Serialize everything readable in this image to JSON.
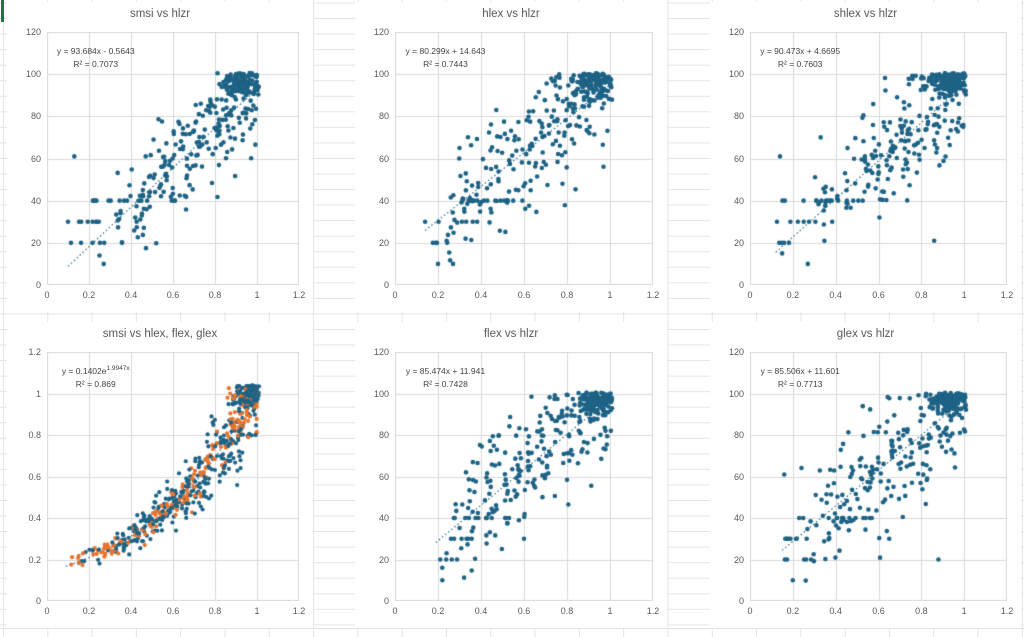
{
  "worksheet": {
    "gridline_color": "#e4e4e4",
    "selection_color": "#217346",
    "background": "#ffffff"
  },
  "colors": {
    "point_blue": "#1e6385",
    "point_orange": "#e8742f",
    "plot_grid": "#d9d9d9",
    "text": "#595959"
  },
  "chart_data": [
    {
      "type": "scatter",
      "title": "smsi vs hlzr",
      "equation": "y = 93.684x - 0.5643",
      "equation_sup": "",
      "r2_label": "R² = 0.7073",
      "xlim": [
        0,
        1.2
      ],
      "ylim": [
        0,
        120
      ],
      "xticks": [
        0,
        0.2,
        0.4,
        0.6,
        0.8,
        1,
        1.2
      ],
      "yticks": [
        0,
        20,
        40,
        60,
        80,
        100,
        120
      ],
      "grid": true,
      "legend": "none",
      "point_radius": 2.3,
      "x_clamp": 1.01,
      "trendline": {
        "kind": "linear",
        "slope": 93.684,
        "intercept": -0.5643,
        "x0": 0.1,
        "x1": 1.005,
        "style": "dotted",
        "color": "#1e6385"
      },
      "series": [
        {
          "name": "hlzr",
          "color": "#1e6385",
          "seed": 11,
          "clouds": [
            {
              "type": "linear",
              "n": 200,
              "x_min": 0.3,
              "x_max": 1.01,
              "x_pow": 0.72,
              "slope": 93.684,
              "intercept": -0.5643,
              "noise": 13,
              "y_min": 8,
              "y_max": 100
            },
            {
              "type": "cluster",
              "n": 120,
              "cx": 0.915,
              "cy": 95.5,
              "sx": 0.045,
              "sy": 3.2,
              "y_max": 100.5
            },
            {
              "type": "band",
              "n": 15,
              "y": 40,
              "x_min": 0.14,
              "x_max": 0.62
            },
            {
              "type": "band",
              "n": 8,
              "y": 30,
              "x_min": 0.08,
              "x_max": 0.46
            },
            {
              "type": "band",
              "n": 6,
              "y": 20,
              "x_min": 0.09,
              "x_max": 0.36
            },
            {
              "type": "points",
              "pts": [
                [
                  0.13,
                  61
                ],
                [
                  0.47,
                  61
                ],
                [
                  0.27,
                  10
                ],
                [
                  0.25,
                  14
                ],
                [
                  0.1,
                  30
                ],
                [
                  0.35,
                  34
                ],
                [
                  0.56,
                  57
                ]
              ]
            }
          ]
        }
      ]
    },
    {
      "type": "scatter",
      "title": "hlex vs hlzr",
      "equation": "y = 80.299x + 14.643",
      "equation_sup": "",
      "r2_label": "R² = 0.7443",
      "xlim": [
        0,
        1.2
      ],
      "ylim": [
        0,
        120
      ],
      "xticks": [
        0,
        0.2,
        0.4,
        0.6,
        0.8,
        1,
        1.2
      ],
      "yticks": [
        0,
        20,
        40,
        60,
        80,
        100,
        120
      ],
      "grid": true,
      "legend": "none",
      "point_radius": 2.3,
      "x_clamp": 1.01,
      "trendline": {
        "kind": "linear",
        "slope": 80.299,
        "intercept": 14.643,
        "x0": 0.14,
        "x1": 1.005,
        "style": "dotted",
        "color": "#1e6385"
      },
      "series": [
        {
          "name": "hlzr",
          "color": "#1e6385",
          "seed": 23,
          "clouds": [
            {
              "type": "linear",
              "n": 225,
              "x_min": 0.24,
              "x_max": 1.01,
              "x_pow": 0.78,
              "slope": 80.299,
              "intercept": 14.643,
              "noise": 15,
              "y_min": 10,
              "y_max": 100
            },
            {
              "type": "cluster",
              "n": 95,
              "cx": 0.92,
              "cy": 95,
              "sx": 0.05,
              "sy": 3.5,
              "y_max": 100.5
            },
            {
              "type": "band",
              "n": 17,
              "y": 40,
              "x_min": 0.33,
              "x_max": 0.62
            },
            {
              "type": "band",
              "n": 5,
              "y": 30,
              "x_min": 0.16,
              "x_max": 0.42
            },
            {
              "type": "band",
              "n": 4,
              "y": 20,
              "x_min": 0.17,
              "x_max": 0.3
            },
            {
              "type": "points",
              "pts": [
                [
                  0.2,
                  10
                ],
                [
                  0.27,
                  10
                ],
                [
                  0.14,
                  30
                ],
                [
                  0.24,
                  21
                ],
                [
                  0.3,
                  65
                ]
              ]
            }
          ]
        }
      ]
    },
    {
      "type": "scatter",
      "title": "shlex vs hlzr",
      "equation": "y = 90.473x + 4.6695",
      "equation_sup": "",
      "r2_label": "R² = 0.7603",
      "xlim": [
        0,
        1.2
      ],
      "ylim": [
        0,
        120
      ],
      "xticks": [
        0,
        0.2,
        0.4,
        0.6,
        0.8,
        1,
        1.2
      ],
      "yticks": [
        0,
        20,
        40,
        60,
        80,
        100,
        120
      ],
      "grid": true,
      "legend": "none",
      "point_radius": 2.3,
      "x_clamp": 1.01,
      "trendline": {
        "kind": "linear",
        "slope": 90.473,
        "intercept": 4.6695,
        "x0": 0.12,
        "x1": 1.005,
        "style": "dotted",
        "color": "#1e6385"
      },
      "series": [
        {
          "name": "hlzr",
          "color": "#1e6385",
          "seed": 37,
          "clouds": [
            {
              "type": "linear",
              "n": 210,
              "x_min": 0.3,
              "x_max": 1.01,
              "x_pow": 0.72,
              "slope": 90.473,
              "intercept": 4.6695,
              "noise": 13,
              "y_min": 8,
              "y_max": 100
            },
            {
              "type": "cluster",
              "n": 130,
              "cx": 0.93,
              "cy": 96,
              "sx": 0.042,
              "sy": 3.0,
              "y_max": 100.5
            },
            {
              "type": "band",
              "n": 15,
              "y": 40,
              "x_min": 0.15,
              "x_max": 0.6
            },
            {
              "type": "band",
              "n": 7,
              "y": 30,
              "x_min": 0.12,
              "x_max": 0.45
            },
            {
              "type": "band",
              "n": 4,
              "y": 20,
              "x_min": 0.12,
              "x_max": 0.3
            },
            {
              "type": "points",
              "pts": [
                [
                  0.14,
                  61
                ],
                [
                  0.15,
                  15
                ],
                [
                  0.86,
                  21
                ],
                [
                  0.27,
                  10
                ],
                [
                  0.33,
                  70
                ]
              ]
            }
          ]
        }
      ]
    },
    {
      "type": "scatter",
      "title": "smsi vs hlex, flex, glex",
      "equation": "y = 0.1402e",
      "equation_sup": "1.9947x",
      "r2_label": "R² = 0.869",
      "xlim": [
        0,
        1.2
      ],
      "ylim": [
        0,
        1.2
      ],
      "xticks": [
        0,
        0.2,
        0.4,
        0.6,
        0.8,
        1,
        1.2
      ],
      "yticks": [
        0,
        0.2,
        0.4,
        0.6,
        0.8,
        1,
        1.2
      ],
      "grid": true,
      "legend": "none",
      "point_radius": 2.1,
      "x_clamp": 1.01,
      "trendline": {
        "kind": "exp",
        "a": 0.1402,
        "b": 1.9947,
        "x0": 0.09,
        "x1": 1.0,
        "style": "dotted",
        "color": "#1e6385"
      },
      "series": [
        {
          "name": "hlex",
          "color": "#1e6385",
          "seed": 81,
          "clouds": [
            {
              "type": "exp",
              "n": 190,
              "x_min": 0.13,
              "x_max": 1.0,
              "x_pow": 0.62,
              "a": 0.1402,
              "b": 1.9947,
              "noise_rel": 0.14,
              "y_max": 1.04
            },
            {
              "type": "cluster",
              "n": 45,
              "cx": 0.95,
              "cy": 0.99,
              "sx": 0.035,
              "sy": 0.03,
              "y_max": 1.04
            }
          ]
        },
        {
          "name": "flex",
          "color": "#e8742f",
          "seed": 82,
          "clouds": [
            {
              "type": "exp",
              "n": 175,
              "x_min": 0.1,
              "x_max": 1.0,
              "x_pow": 0.7,
              "a": 0.1402,
              "b": 1.9947,
              "noise_rel": 0.08,
              "y_max": 1.03
            },
            {
              "type": "cluster",
              "n": 20,
              "cx": 0.93,
              "cy": 0.97,
              "sx": 0.04,
              "sy": 0.035,
              "y_max": 1.03
            }
          ]
        },
        {
          "name": "glex",
          "color": "#1e6385",
          "seed": 83,
          "clouds": [
            {
              "type": "exp",
              "n": 130,
              "x_min": 0.15,
              "x_max": 1.0,
              "x_pow": 0.6,
              "a": 0.1402,
              "b": 1.9947,
              "noise_rel": 0.12,
              "y_max": 1.04
            },
            {
              "type": "cluster",
              "n": 30,
              "cx": 0.96,
              "cy": 1.0,
              "sx": 0.03,
              "sy": 0.025,
              "y_max": 1.04
            }
          ]
        }
      ]
    },
    {
      "type": "scatter",
      "title": "flex vs hlzr",
      "equation": "y = 85.474x + 11.941",
      "equation_sup": "",
      "r2_label": "R² = 0.7428",
      "xlim": [
        0,
        1.2
      ],
      "ylim": [
        0,
        120
      ],
      "xticks": [
        0,
        0.2,
        0.4,
        0.6,
        0.8,
        1,
        1.2
      ],
      "yticks": [
        0,
        20,
        40,
        60,
        80,
        100,
        120
      ],
      "grid": true,
      "legend": "none",
      "point_radius": 2.3,
      "x_clamp": 1.01,
      "trendline": {
        "kind": "linear",
        "slope": 85.474,
        "intercept": 11.941,
        "x0": 0.19,
        "x1": 1.005,
        "style": "dotted",
        "color": "#1e6385"
      },
      "series": [
        {
          "name": "hlzr",
          "color": "#1e6385",
          "seed": 53,
          "clouds": [
            {
              "type": "linear",
              "n": 220,
              "x_min": 0.27,
              "x_max": 1.01,
              "x_pow": 0.76,
              "slope": 85.474,
              "intercept": 11.941,
              "noise": 14,
              "y_min": 9,
              "y_max": 100
            },
            {
              "type": "cluster",
              "n": 100,
              "cx": 0.92,
              "cy": 95.5,
              "sx": 0.05,
              "sy": 3.2,
              "y_max": 100.5
            },
            {
              "type": "band",
              "n": 13,
              "y": 40,
              "x_min": 0.2,
              "x_max": 0.56
            },
            {
              "type": "band",
              "n": 6,
              "y": 30,
              "x_min": 0.19,
              "x_max": 0.36
            },
            {
              "type": "band",
              "n": 4,
              "y": 20,
              "x_min": 0.2,
              "x_max": 0.3
            },
            {
              "type": "points",
              "pts": [
                [
                  0.22,
                  10
                ],
                [
                  0.22,
                  16
                ],
                [
                  0.24,
                  23
                ],
                [
                  0.6,
                  30
                ],
                [
                  0.33,
                  62
                ]
              ]
            }
          ]
        }
      ]
    },
    {
      "type": "scatter",
      "title": "glex vs hlzr",
      "equation": "y = 85.506x + 11.601",
      "equation_sup": "",
      "r2_label": "R² = 0.7713",
      "xlim": [
        0,
        1.2
      ],
      "ylim": [
        0,
        120
      ],
      "xticks": [
        0,
        0.2,
        0.4,
        0.6,
        0.8,
        1,
        1.2
      ],
      "yticks": [
        0,
        20,
        40,
        60,
        80,
        100,
        120
      ],
      "grid": true,
      "legend": "none",
      "point_radius": 2.3,
      "x_clamp": 1.01,
      "trendline": {
        "kind": "linear",
        "slope": 85.506,
        "intercept": 11.601,
        "x0": 0.15,
        "x1": 1.005,
        "style": "dotted",
        "color": "#1e6385"
      },
      "series": [
        {
          "name": "hlzr",
          "color": "#1e6385",
          "seed": 67,
          "clouds": [
            {
              "type": "linear",
              "n": 220,
              "x_min": 0.24,
              "x_max": 1.01,
              "x_pow": 0.76,
              "slope": 85.506,
              "intercept": 11.601,
              "noise": 15,
              "y_min": 9,
              "y_max": 100
            },
            {
              "type": "cluster",
              "n": 110,
              "cx": 0.93,
              "cy": 96,
              "sx": 0.045,
              "sy": 3.0,
              "y_max": 100.5
            },
            {
              "type": "band",
              "n": 14,
              "y": 40,
              "x_min": 0.22,
              "x_max": 0.6
            },
            {
              "type": "band",
              "n": 8,
              "y": 30,
              "x_min": 0.15,
              "x_max": 0.38
            },
            {
              "type": "band",
              "n": 5,
              "y": 20,
              "x_min": 0.15,
              "x_max": 0.3
            },
            {
              "type": "points",
              "pts": [
                [
                  0.88,
                  20
                ],
                [
                  0.2,
                  10
                ],
                [
                  0.65,
                  30
                ],
                [
                  0.16,
                  61
                ]
              ]
            }
          ]
        }
      ]
    }
  ]
}
